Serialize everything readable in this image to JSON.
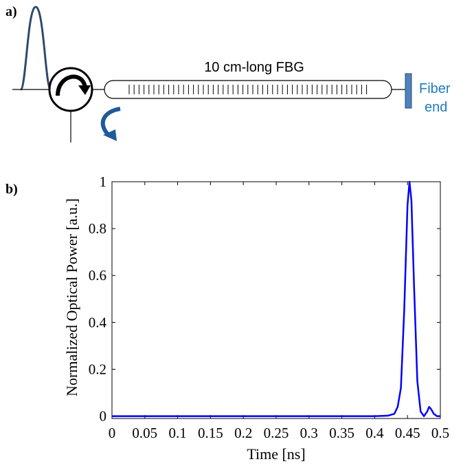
{
  "panel_a": {
    "label": "a)",
    "fbg_label": "10 cm-long FBG",
    "fiber_end_line1": "Fiber",
    "fiber_end_line2": "end",
    "colors": {
      "pulse": "#2e4a6b",
      "arrow": "#1f5a99",
      "fiber_end_fill": "#4f81bd",
      "fiber_end_text": "#1f7ac0",
      "line": "#000000"
    }
  },
  "panel_b": {
    "label": "b)"
  },
  "chart_data": {
    "type": "line",
    "xlabel": "Time [ns]",
    "ylabel": "Normalized Optical Power [a.u.]",
    "xlim": [
      0,
      0.5
    ],
    "ylim": [
      -0.01,
      1
    ],
    "x_ticks": [
      0,
      0.05,
      0.1,
      0.15,
      0.2,
      0.25,
      0.3,
      0.35,
      0.4,
      0.45,
      0.5
    ],
    "x_tick_labels": [
      "0",
      "0.05",
      "0.1",
      "0.15",
      "0.2",
      "0.25",
      "0.3",
      "0.35",
      "0.4",
      "0.45",
      "0.5"
    ],
    "y_ticks": [
      0,
      0.2,
      0.4,
      0.6,
      0.8,
      1
    ],
    "y_tick_labels": [
      "0",
      "0.2",
      "0.4",
      "0.6",
      "0.8",
      "1"
    ],
    "grid": false,
    "series": [
      {
        "color": "#0000ff",
        "x": [
          0,
          0.05,
          0.1,
          0.15,
          0.2,
          0.25,
          0.3,
          0.35,
          0.4,
          0.42,
          0.43,
          0.435,
          0.44,
          0.445,
          0.45,
          0.453,
          0.456,
          0.46,
          0.465,
          0.47,
          0.475,
          0.48,
          0.483,
          0.486,
          0.49,
          0.495,
          0.5
        ],
        "y": [
          0,
          0,
          0,
          0,
          0,
          0,
          0,
          0,
          0,
          0.002,
          0.01,
          0.04,
          0.12,
          0.45,
          0.9,
          1.0,
          0.92,
          0.55,
          0.15,
          0.02,
          0.0,
          0.02,
          0.04,
          0.03,
          0.01,
          0,
          0
        ]
      }
    ]
  }
}
